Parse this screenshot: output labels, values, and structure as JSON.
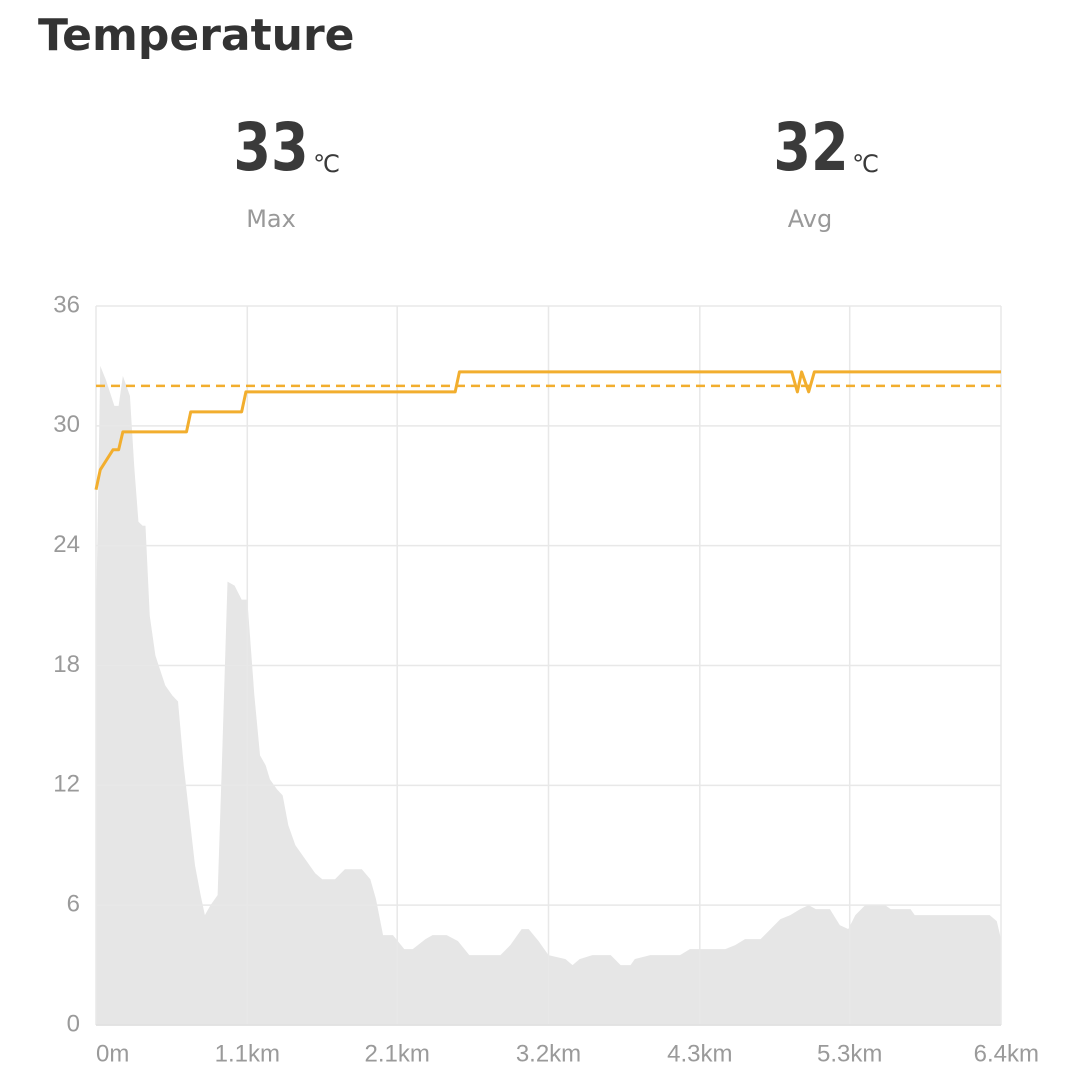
{
  "header": {
    "title": "Temperature"
  },
  "stats": [
    {
      "value": 33,
      "unit": "℃",
      "label": "Max"
    },
    {
      "value": 32,
      "unit": "℃",
      "label": "Avg"
    }
  ],
  "chart_data": {
    "type": "line",
    "xlim": [
      0,
      6.4
    ],
    "ylim": [
      0,
      36
    ],
    "yticks": [
      0,
      6,
      12,
      18,
      24,
      30,
      36
    ],
    "xticks": [
      {
        "value": 0,
        "label": "0m"
      },
      {
        "value": 1.07,
        "label": "1.1km"
      },
      {
        "value": 2.13,
        "label": "2.1km"
      },
      {
        "value": 3.2,
        "label": "3.2km"
      },
      {
        "value": 4.27,
        "label": "4.3km"
      },
      {
        "value": 5.33,
        "label": "5.3km"
      },
      {
        "value": 6.4,
        "label": "6.4km"
      }
    ],
    "grid": true,
    "series": [
      {
        "kind": "area",
        "color": "#e6e6e6",
        "x": [
          0,
          0.03,
          0.07,
          0.13,
          0.16,
          0.19,
          0.24,
          0.27,
          0.3,
          0.33,
          0.35,
          0.38,
          0.42,
          0.49,
          0.54,
          0.58,
          0.62,
          0.66,
          0.7,
          0.74,
          0.77,
          0.81,
          0.86,
          0.89,
          0.93,
          0.98,
          1.03,
          1.07,
          1.12,
          1.16,
          1.2,
          1.23,
          1.28,
          1.32,
          1.36,
          1.41,
          1.48,
          1.55,
          1.6,
          1.69,
          1.76,
          1.88,
          1.94,
          1.98,
          2.03,
          2.1,
          2.18,
          2.24,
          2.33,
          2.38,
          2.48,
          2.56,
          2.64,
          2.86,
          2.93,
          3.01,
          3.06,
          3.13,
          3.2,
          3.32,
          3.37,
          3.42,
          3.51,
          3.64,
          3.71,
          3.78,
          3.81,
          3.92,
          4.13,
          4.2,
          4.45,
          4.52,
          4.59,
          4.7,
          4.77,
          4.84,
          4.91,
          4.98,
          5.04,
          5.09,
          5.19,
          5.26,
          5.32,
          5.37,
          5.44,
          5.58,
          5.62,
          5.76,
          5.79,
          6.32,
          6.37,
          6.4
        ],
        "values": [
          20,
          33,
          32.3,
          31,
          31,
          32.5,
          31.5,
          28,
          25.2,
          25,
          25,
          20.5,
          18.5,
          17,
          16.5,
          16.2,
          13,
          10.5,
          8,
          6.5,
          5.5,
          6,
          6.5,
          13,
          22.2,
          22,
          21.3,
          21.3,
          16.5,
          13.5,
          13,
          12.3,
          11.8,
          11.5,
          10,
          9,
          8.3,
          7.6,
          7.3,
          7.3,
          7.8,
          7.8,
          7.3,
          6.3,
          4.5,
          4.5,
          3.8,
          3.8,
          4.3,
          4.5,
          4.5,
          4.2,
          3.5,
          3.5,
          4,
          4.8,
          4.8,
          4.2,
          3.5,
          3.3,
          3,
          3.3,
          3.5,
          3.5,
          3,
          3,
          3.3,
          3.5,
          3.5,
          3.8,
          3.8,
          4,
          4.3,
          4.3,
          4.8,
          5.3,
          5.5,
          5.8,
          6,
          5.8,
          5.8,
          5,
          4.8,
          5.5,
          6,
          6,
          5.8,
          5.8,
          5.5,
          5.5,
          5.2,
          4.3
        ]
      },
      {
        "kind": "line",
        "color": "#f2ae2e",
        "x": [
          0,
          0.03,
          0.12,
          0.16,
          0.19,
          0.64,
          0.67,
          1.03,
          1.06,
          2.54,
          2.57,
          4.92,
          4.96,
          4.99,
          5.04,
          5.08,
          6.4
        ],
        "values": [
          26.8,
          27.8,
          28.8,
          28.8,
          29.7,
          29.7,
          30.7,
          30.7,
          31.7,
          31.7,
          32.7,
          32.7,
          31.7,
          32.7,
          31.7,
          32.7,
          32.7
        ]
      }
    ]
  }
}
